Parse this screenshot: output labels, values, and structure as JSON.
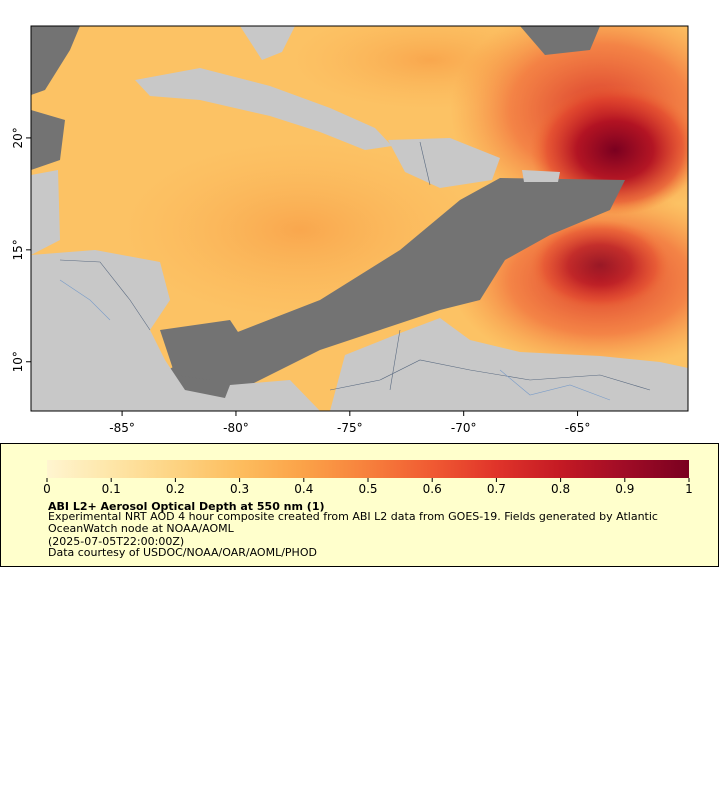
{
  "map": {
    "lon_range": [
      -89,
      -60.15
    ],
    "lat_range": [
      7.8,
      25
    ],
    "lon_ticks": [
      {
        "value": -85,
        "label": "-85°"
      },
      {
        "value": -80,
        "label": "-80°"
      },
      {
        "value": -75,
        "label": "-75°"
      },
      {
        "value": -70,
        "label": "-70°"
      },
      {
        "value": -65,
        "label": "-65°"
      }
    ],
    "lat_ticks": [
      {
        "value": 10,
        "label": "10°"
      },
      {
        "value": 15,
        "label": "15°"
      },
      {
        "value": 20,
        "label": "20°"
      }
    ]
  },
  "legend": {
    "colorbar": {
      "range": [
        0,
        1
      ],
      "ticks": [
        0,
        0.1,
        0.2,
        0.3,
        0.4,
        0.5,
        0.6,
        0.7,
        0.8,
        0.9,
        1
      ],
      "colormap": [
        "#fff5d0",
        "#fee6a8",
        "#fdd382",
        "#fdbd5e",
        "#fba248",
        "#f7803c",
        "#f05a32",
        "#e0342a",
        "#c41a24",
        "#a00c26",
        "#7a0020"
      ]
    },
    "title": "ABI L2+ Aerosol Optical Depth at 550 nm (1)",
    "description": "Experimental NRT AOD 4 hour composite created from ABI L2 data from GOES-19. Fields generated by Atlantic OceanWatch node at NOAA/AOML",
    "date": "(2025-07-05T22:00:00Z)",
    "credit": "Data courtesy of USDOC/NOAA/OAR/AOML/PHOD"
  }
}
